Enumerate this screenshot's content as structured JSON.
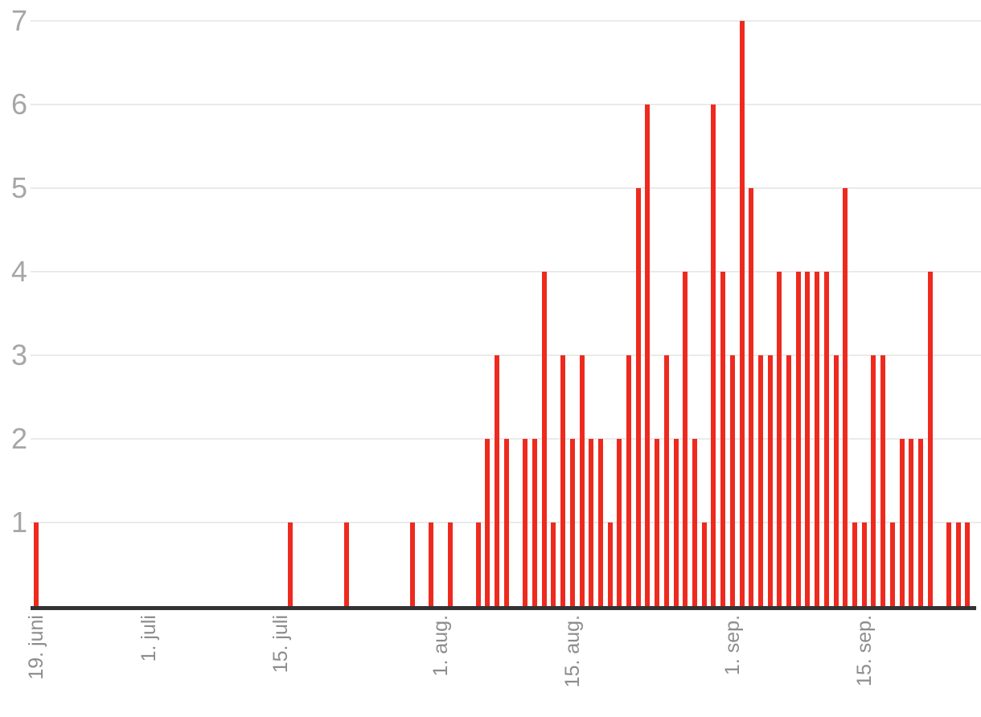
{
  "chart_data": {
    "type": "bar",
    "title": "",
    "description": "Daily bar chart, one thin red bar per day, dates from 19. juni to 26. sep.",
    "x_axis": {
      "tick_labels": [
        "19. juni",
        "1. juli",
        "15. juli",
        "1. aug.",
        "15. aug.",
        "1. sep.",
        "15. sep."
      ],
      "label_rotation_degrees": -90
    },
    "y_axis": {
      "tick_labels": [
        "1",
        "2",
        "3",
        "4",
        "5",
        "6",
        "7"
      ],
      "range": [
        0,
        7
      ]
    },
    "grid": "horizontal gridlines at each integer value",
    "legend": "none",
    "points": [
      {
        "date": "19. juni",
        "value": 1
      },
      {
        "date": "16. juli",
        "value": 1
      },
      {
        "date": "22. juli",
        "value": 1
      },
      {
        "date": "29. juli",
        "value": 1
      },
      {
        "date": "31. juli",
        "value": 1
      },
      {
        "date": "2. aug.",
        "value": 1
      },
      {
        "date": "5. aug.",
        "value": 1
      },
      {
        "date": "6. aug.",
        "value": 2
      },
      {
        "date": "7. aug.",
        "value": 3
      },
      {
        "date": "8. aug.",
        "value": 2
      },
      {
        "date": "10. aug.",
        "value": 2
      },
      {
        "date": "11. aug.",
        "value": 2
      },
      {
        "date": "12. aug.",
        "value": 4
      },
      {
        "date": "13. aug.",
        "value": 1
      },
      {
        "date": "14. aug.",
        "value": 3
      },
      {
        "date": "15. aug.",
        "value": 2
      },
      {
        "date": "16. aug.",
        "value": 3
      },
      {
        "date": "17. aug.",
        "value": 2
      },
      {
        "date": "18. aug.",
        "value": 2
      },
      {
        "date": "19. aug.",
        "value": 1
      },
      {
        "date": "20. aug.",
        "value": 2
      },
      {
        "date": "21. aug.",
        "value": 3
      },
      {
        "date": "22. aug.",
        "value": 5
      },
      {
        "date": "23. aug.",
        "value": 6
      },
      {
        "date": "24. aug.",
        "value": 2
      },
      {
        "date": "25. aug.",
        "value": 3
      },
      {
        "date": "26. aug.",
        "value": 2
      },
      {
        "date": "27. aug.",
        "value": 4
      },
      {
        "date": "28. aug.",
        "value": 2
      },
      {
        "date": "29. aug.",
        "value": 1
      },
      {
        "date": "30. aug.",
        "value": 6
      },
      {
        "date": "31. aug.",
        "value": 4
      },
      {
        "date": "1. sep.",
        "value": 3
      },
      {
        "date": "2. sep.",
        "value": 7
      },
      {
        "date": "3. sep.",
        "value": 5
      },
      {
        "date": "4. sep.",
        "value": 3
      },
      {
        "date": "5. sep.",
        "value": 3
      },
      {
        "date": "6. sep.",
        "value": 4
      },
      {
        "date": "7. sep.",
        "value": 3
      },
      {
        "date": "8. sep.",
        "value": 4
      },
      {
        "date": "9. sep.",
        "value": 4
      },
      {
        "date": "10. sep.",
        "value": 4
      },
      {
        "date": "11. sep.",
        "value": 4
      },
      {
        "date": "12. sep.",
        "value": 3
      },
      {
        "date": "13. sep.",
        "value": 5
      },
      {
        "date": "14. sep.",
        "value": 1
      },
      {
        "date": "15. sep.",
        "value": 1
      },
      {
        "date": "16. sep.",
        "value": 3
      },
      {
        "date": "17. sep.",
        "value": 3
      },
      {
        "date": "18. sep.",
        "value": 1
      },
      {
        "date": "19. sep.",
        "value": 2
      },
      {
        "date": "20. sep.",
        "value": 2
      },
      {
        "date": "21. sep.",
        "value": 2
      },
      {
        "date": "22. sep.",
        "value": 4
      },
      {
        "date": "24. sep.",
        "value": 1
      },
      {
        "date": "25. sep.",
        "value": 1
      },
      {
        "date": "26. sep.",
        "value": 1
      }
    ]
  },
  "colors": {
    "bar": "#ee2a1f",
    "grid_line": "#eaeaea",
    "axis_line": "#333333",
    "y_label": "#a6a6a6",
    "x_label": "#8d8d8d",
    "background": "#ffffff"
  }
}
